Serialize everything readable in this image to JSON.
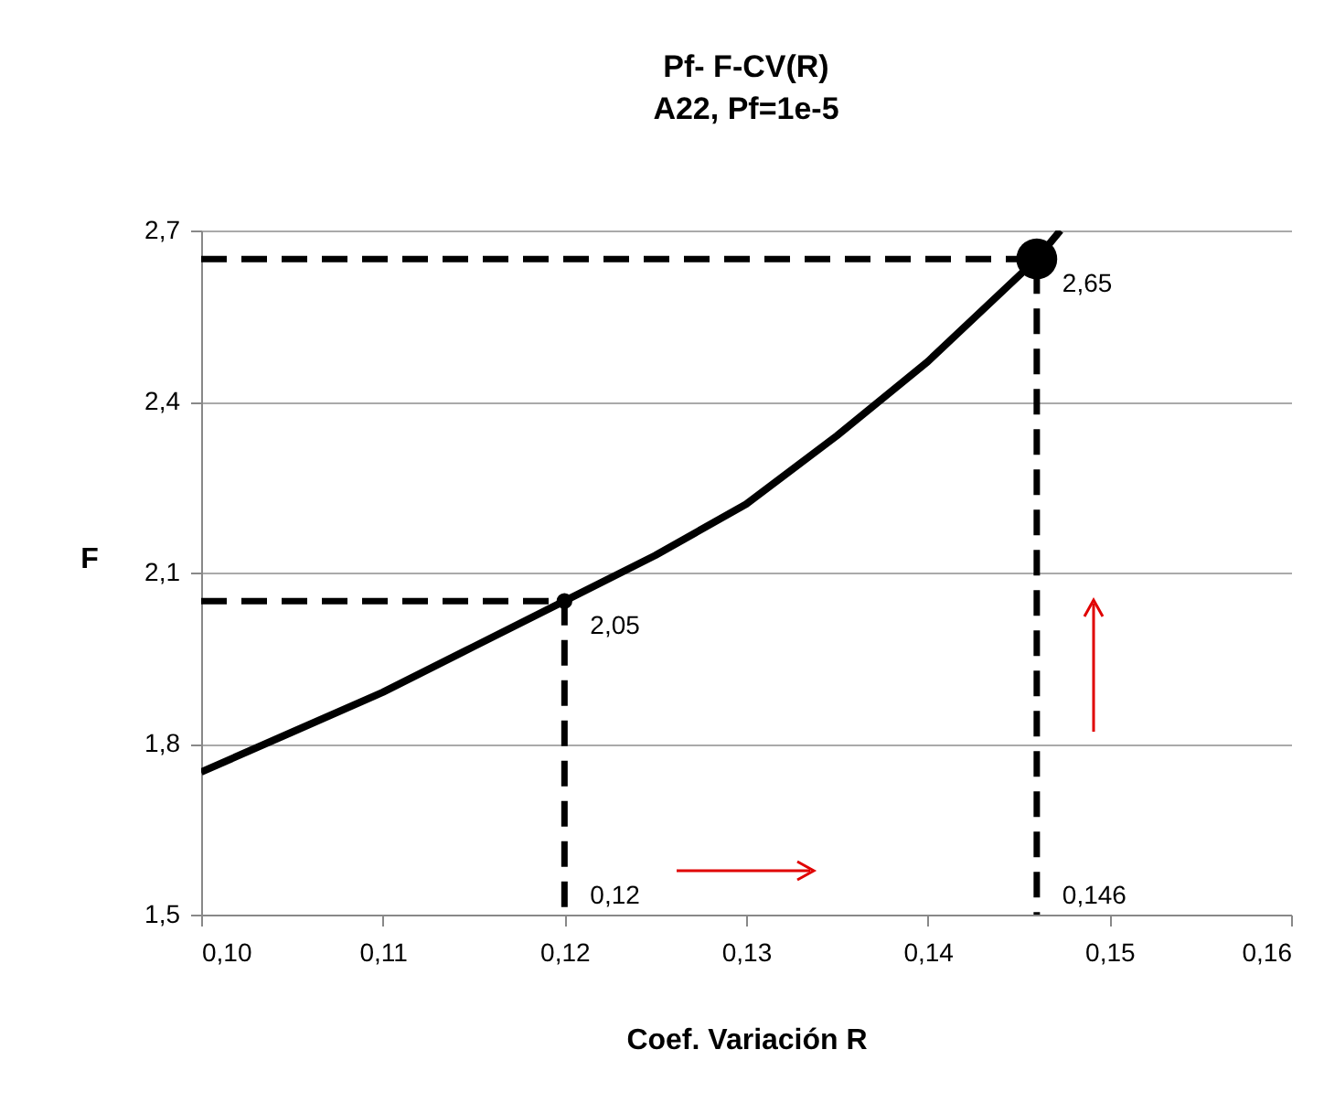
{
  "chart_data": {
    "type": "line",
    "title": "Pf- F-CV(R)",
    "subtitle": "A22, Pf=1e-5",
    "xlabel": "Coef. Variación R",
    "ylabel": "F",
    "xlim": [
      0.1,
      0.16
    ],
    "xticks": [
      {
        "value": 0.1,
        "label": "0,10"
      },
      {
        "value": 0.11,
        "label": "0,11"
      },
      {
        "value": 0.12,
        "label": "0,12"
      },
      {
        "value": 0.13,
        "label": "0,13"
      },
      {
        "value": 0.14,
        "label": "0,14"
      },
      {
        "value": 0.15,
        "label": "0,15"
      },
      {
        "value": 0.16,
        "label": "0,16"
      }
    ],
    "ylim": [
      1.5,
      2.7
    ],
    "yticks": [
      {
        "value": 1.5,
        "label": "1,5"
      },
      {
        "value": 1.8,
        "label": "1,8"
      },
      {
        "value": 2.1,
        "label": "2,1"
      },
      {
        "value": 2.4,
        "label": "2,4"
      },
      {
        "value": 2.7,
        "label": "2,7"
      }
    ],
    "grid": "y",
    "series": [
      {
        "type": "line",
        "color": "#000000",
        "line_style": "solid",
        "x": [
          0.1,
          0.105,
          0.11,
          0.115,
          0.12,
          0.125,
          0.13,
          0.135,
          0.14,
          0.146,
          0.1473
        ],
        "values": [
          1.75,
          1.82,
          1.89,
          1.97,
          2.05,
          2.13,
          2.22,
          2.34,
          2.47,
          2.65,
          2.7
        ]
      },
      {
        "type": "line",
        "color": "#000000",
        "line_style": "dashed",
        "x": [
          0.1,
          0.146,
          0.146
        ],
        "values": [
          2.65,
          2.65,
          1.5
        ]
      },
      {
        "type": "line",
        "color": "#000000",
        "line_style": "dashed",
        "x": [
          0.1,
          0.12,
          0.12
        ],
        "values": [
          2.05,
          2.05,
          1.5
        ]
      },
      {
        "type": "bubble",
        "color": "#000000",
        "x": [
          0.12,
          0.146
        ],
        "values": [
          2.05,
          2.65
        ],
        "sizes": [
          0.15,
          1
        ],
        "value_labels": [
          "2,05",
          "2,65"
        ]
      }
    ],
    "annotations": [
      {
        "text": "0,12",
        "x": 0.12,
        "y": 1.58
      },
      {
        "text": "0,146",
        "x": 0.146,
        "y": 1.58
      }
    ]
  }
}
